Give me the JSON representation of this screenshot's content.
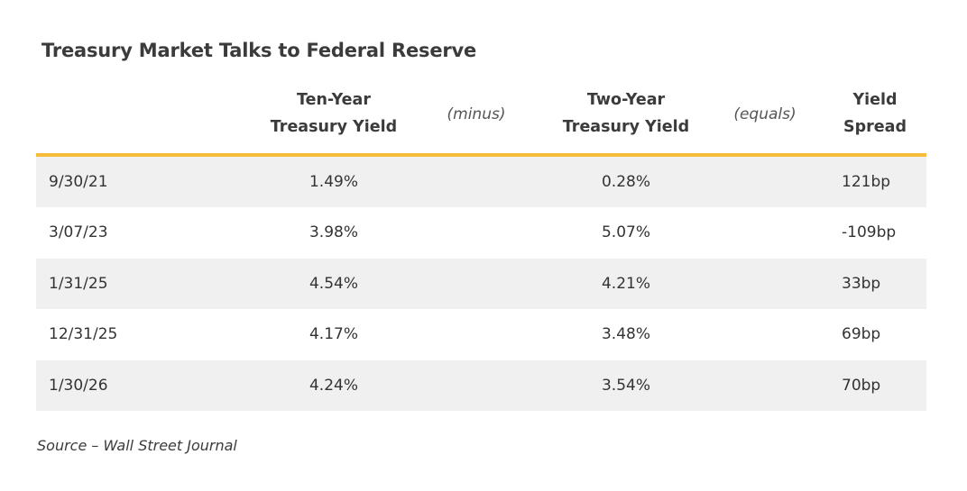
{
  "title": "Treasury Market Talks to Federal Reserve",
  "chart_data": {
    "type": "table",
    "title": "Treasury Market Talks to Federal Reserve",
    "columns": [
      {
        "line1": "Ten-Year",
        "line2": "Treasury Yield"
      },
      {
        "operator": "(minus)"
      },
      {
        "line1": "Two-Year",
        "line2": "Treasury Yield"
      },
      {
        "operator": "(equals)"
      },
      {
        "line1": "Yield",
        "line2": "Spread"
      }
    ],
    "rows": [
      {
        "date": "9/30/21",
        "ten_year": "1.49%",
        "two_year": "0.28%",
        "spread": "121bp"
      },
      {
        "date": "3/07/23",
        "ten_year": "3.98%",
        "two_year": "5.07%",
        "spread": "-109bp"
      },
      {
        "date": "1/31/25",
        "ten_year": "4.54%",
        "two_year": "4.21%",
        "spread": "33bp"
      },
      {
        "date": "12/31/25",
        "ten_year": "4.17%",
        "two_year": "3.48%",
        "spread": "69bp"
      },
      {
        "date": "1/30/26",
        "ten_year": "4.24%",
        "two_year": "3.54%",
        "spread": "70bp"
      }
    ]
  },
  "source": "Source – Wall Street Journal",
  "colors": {
    "accent_rule": "#f7bc3a",
    "row_stripe": "#f0f0f1",
    "text": "#333333"
  }
}
